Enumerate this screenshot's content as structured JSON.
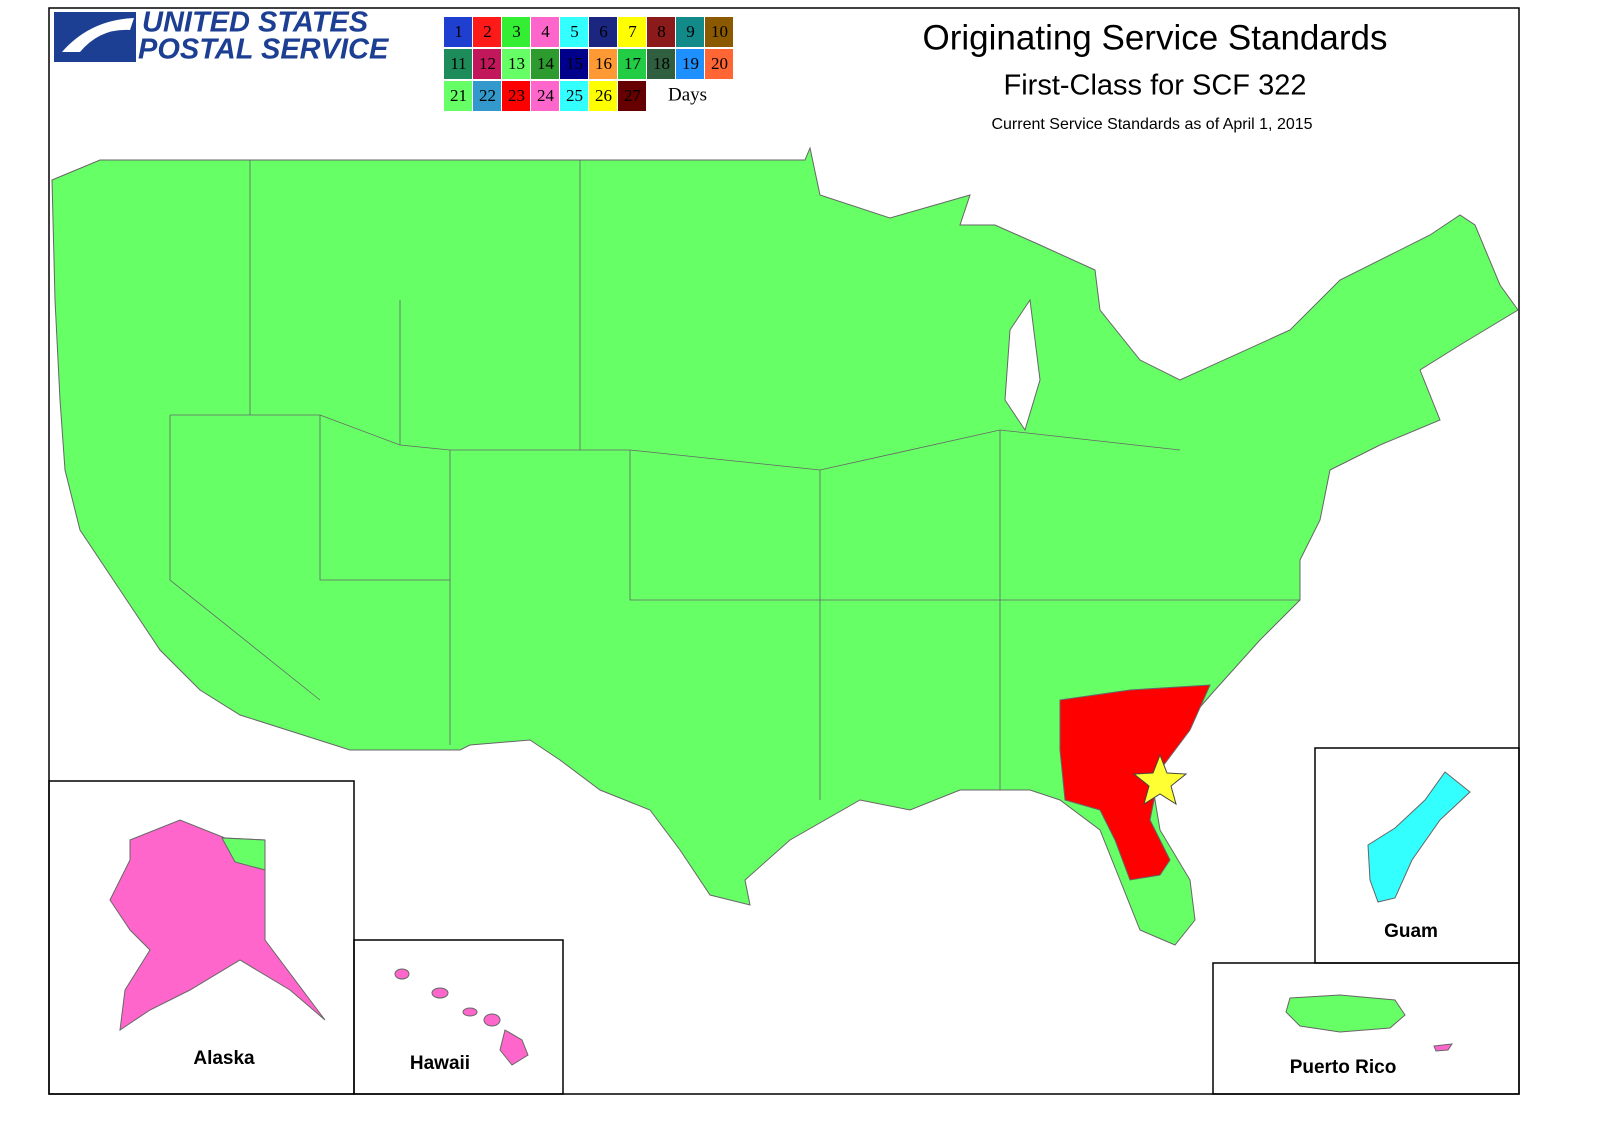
{
  "logo": {
    "line1": "UNITED STATES",
    "line2": "POSTAL SERVICE"
  },
  "header": {
    "title": "Originating Service Standards",
    "subtitle": "First-Class for SCF 322",
    "note": "Current Service Standards as of April 1, 2015"
  },
  "legend": {
    "unit": "Days",
    "items": [
      {
        "label": 1,
        "color": "#1f3fd0"
      },
      {
        "label": 2,
        "color": "#ff1a1a"
      },
      {
        "label": 3,
        "color": "#33ee33"
      },
      {
        "label": 4,
        "color": "#ff66cc"
      },
      {
        "label": 5,
        "color": "#33ffff"
      },
      {
        "label": 6,
        "color": "#1a2680"
      },
      {
        "label": 7,
        "color": "#ffff00"
      },
      {
        "label": 8,
        "color": "#8b1a1a"
      },
      {
        "label": 9,
        "color": "#138a8a"
      },
      {
        "label": 10,
        "color": "#8b5a00"
      },
      {
        "label": 11,
        "color": "#1e8b5a"
      },
      {
        "label": 12,
        "color": "#c2185b"
      },
      {
        "label": 13,
        "color": "#66ff66"
      },
      {
        "label": 14,
        "color": "#2e9b2e"
      },
      {
        "label": 15,
        "color": "#00008b"
      },
      {
        "label": 16,
        "color": "#ff9933"
      },
      {
        "label": 17,
        "color": "#22cc44"
      },
      {
        "label": 18,
        "color": "#2f5f3f"
      },
      {
        "label": 19,
        "color": "#1e90ff"
      },
      {
        "label": 20,
        "color": "#ff6633"
      },
      {
        "label": 21,
        "color": "#66ff66"
      },
      {
        "label": 22,
        "color": "#3399cc"
      },
      {
        "label": 23,
        "color": "#ff0000"
      },
      {
        "label": 24,
        "color": "#ff66cc"
      },
      {
        "label": 25,
        "color": "#33ffff"
      },
      {
        "label": 26,
        "color": "#ffff00"
      },
      {
        "label": 27,
        "color": "#660000"
      }
    ]
  },
  "insets": {
    "alaska": "Alaska",
    "hawaii": "Hawaii",
    "guam": "Guam",
    "puerto_rico": "Puerto Rico"
  }
}
